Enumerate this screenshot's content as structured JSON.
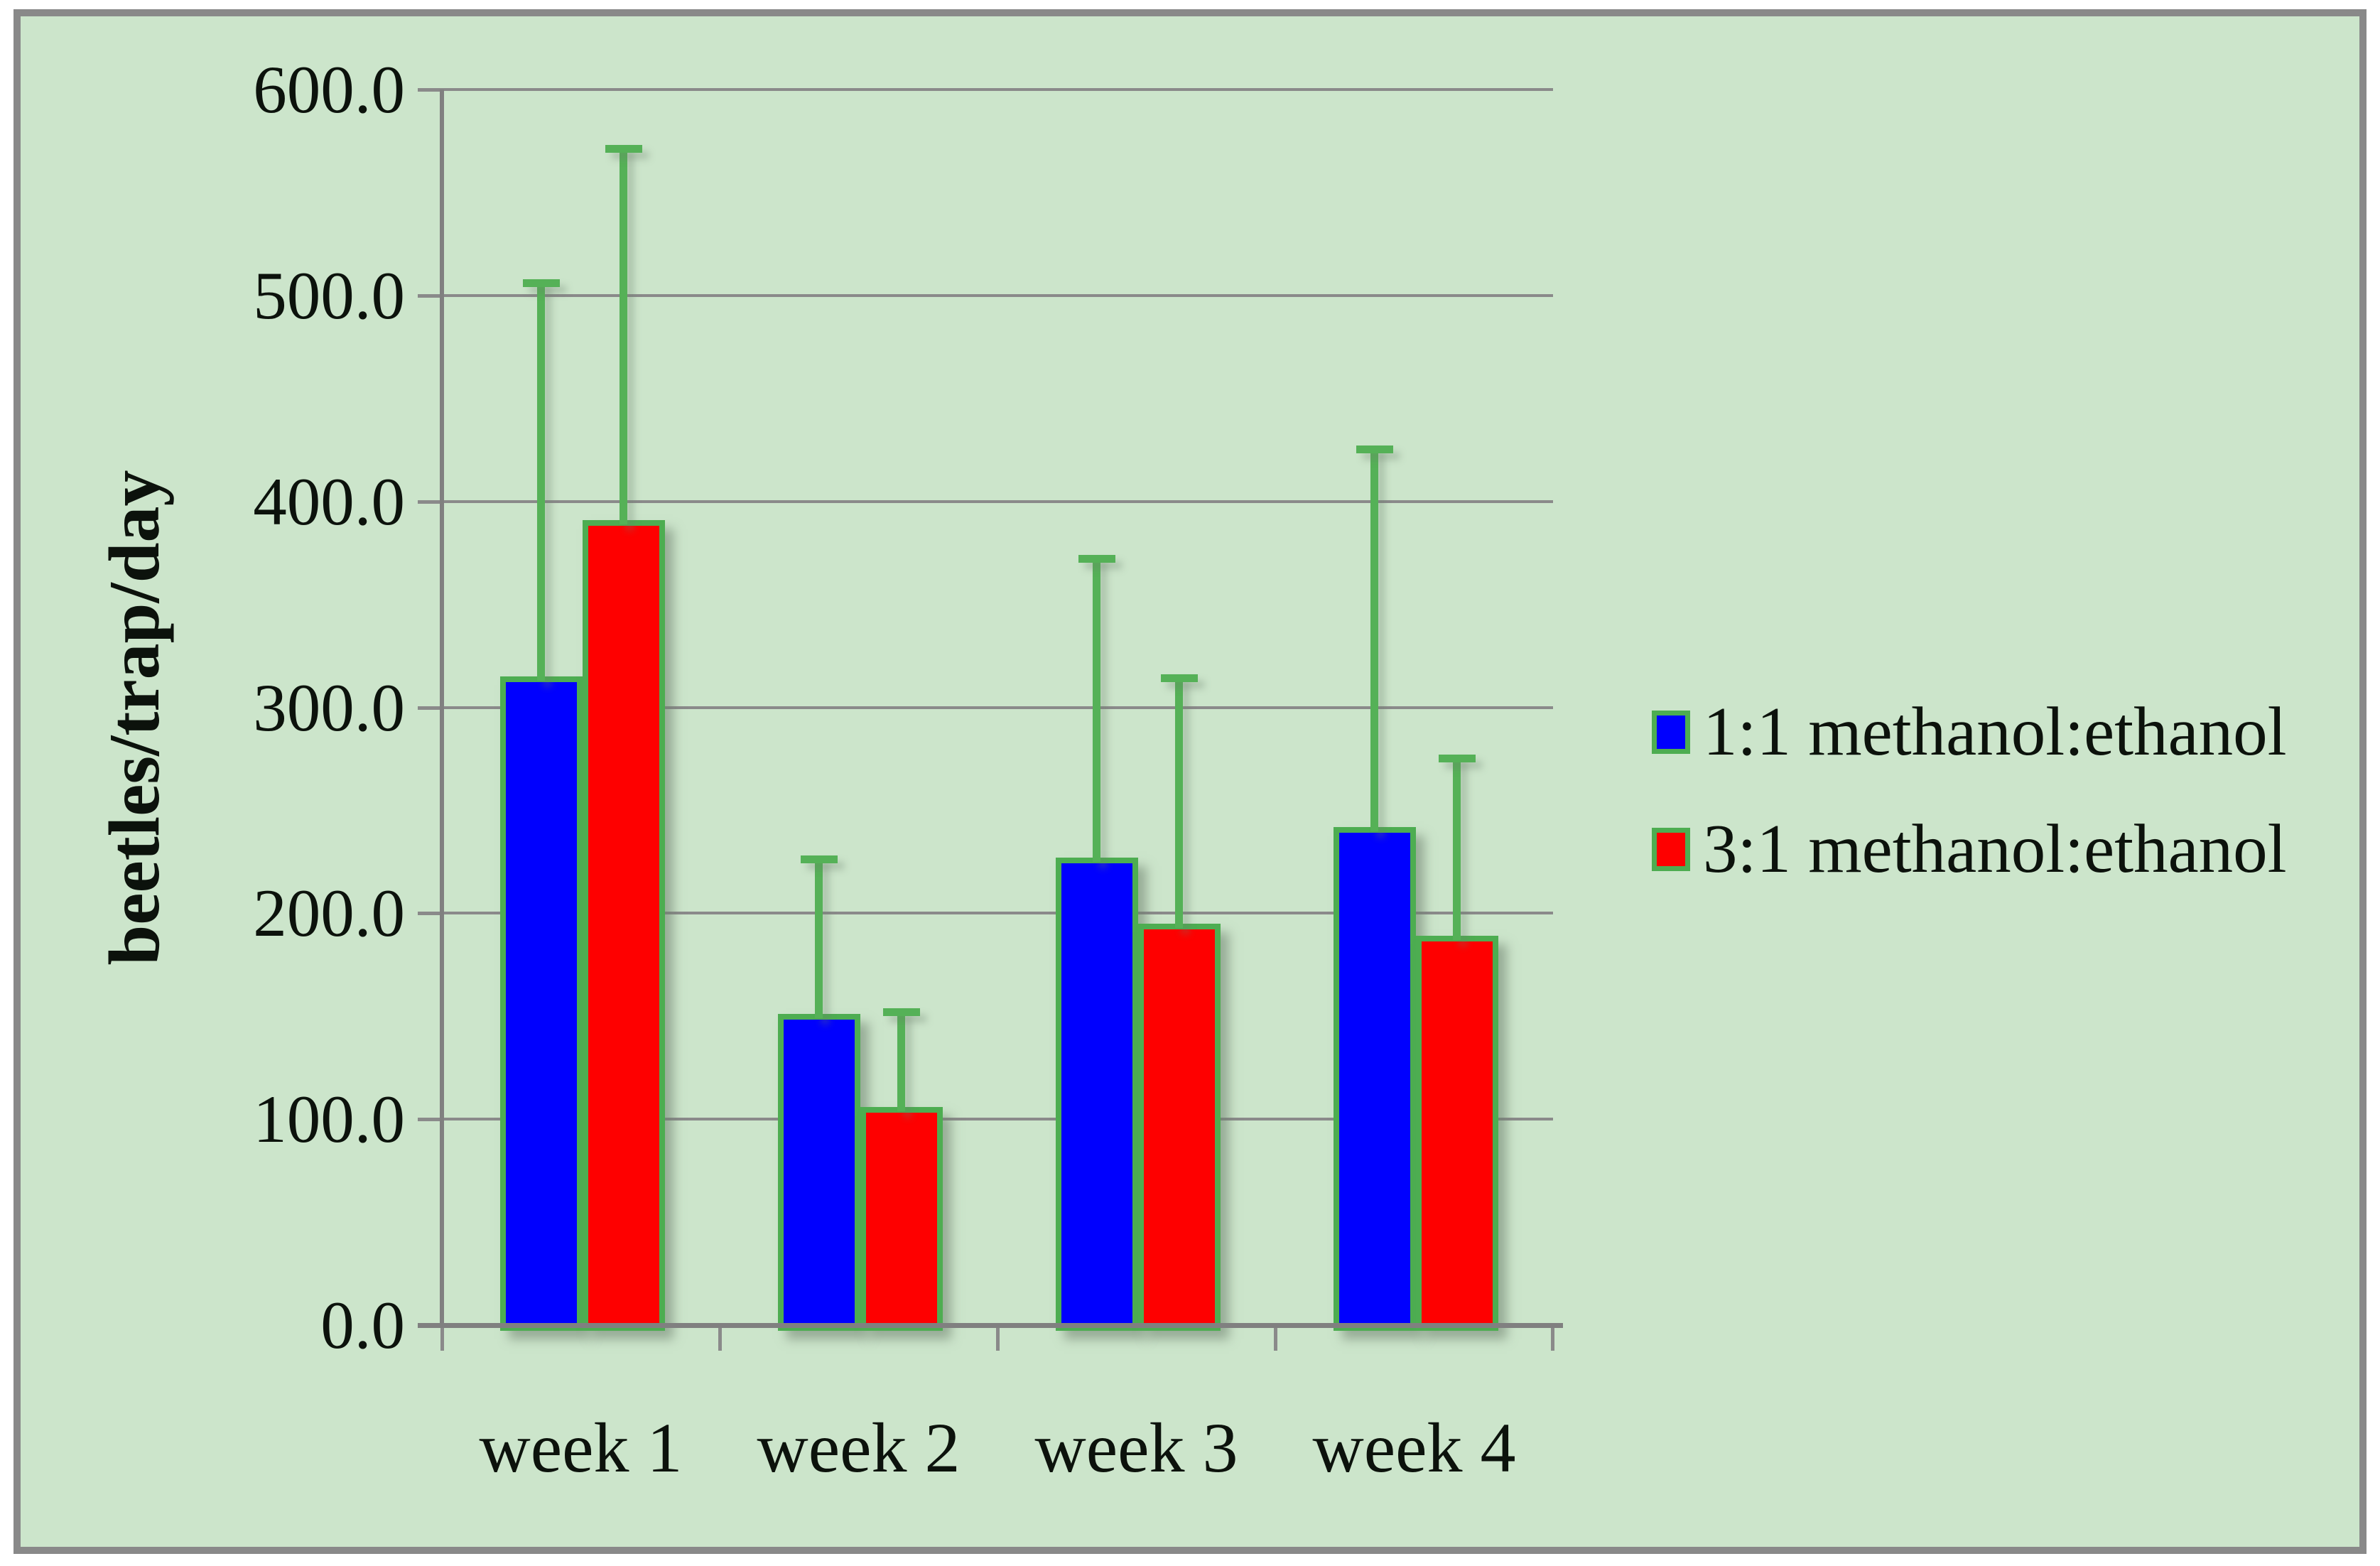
{
  "chart_data": {
    "type": "bar",
    "title": "",
    "categories": [
      "week 1",
      "week 2",
      "week 3",
      "week 4"
    ],
    "series": [
      {
        "name": "1:1 methanol:ethanol",
        "color": "#0000fe",
        "values": [
          315,
          151,
          227,
          242
        ],
        "error_up": [
          193,
          77,
          147,
          185
        ]
      },
      {
        "name": "3:1 methanol:ethanol",
        "color": "#fe0000",
        "values": [
          391,
          106,
          195,
          189
        ],
        "error_up": [
          182,
          48,
          121,
          88
        ]
      }
    ],
    "xlabel": "",
    "ylabel": "beetles/trap/day",
    "ylim": [
      0,
      600
    ],
    "ytick_step": 100,
    "ytick_labels": [
      "0.0",
      "100.0",
      "200.0",
      "300.0",
      "400.0",
      "500.0",
      "600.0"
    ],
    "grid": "horizontal-only",
    "legend_position": "right-middle",
    "bar_outline_color": "#4dad51",
    "error_bar_color": "#55b157",
    "background_color": "#cce5cb",
    "frame_border_color": "#898989",
    "gridline_color": "#8a8a8a"
  }
}
